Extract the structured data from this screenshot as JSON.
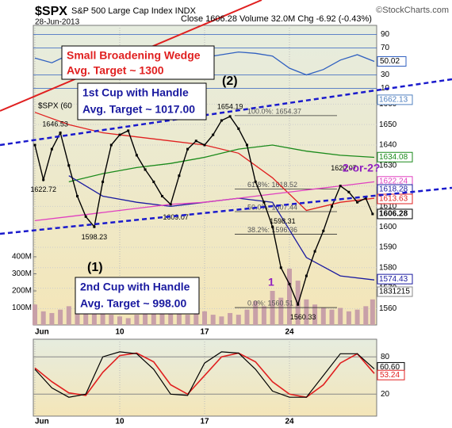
{
  "chart_data": {
    "type": "stock",
    "title": "$SPX",
    "subtitle": "S&P 500 Large Cap Index INDX",
    "source": "©StockCharts.com",
    "date": "28-Jun-2013",
    "quote": "Close 1606.28  Volume 32.0M Chg -6.92 (-0.43%)",
    "legend_label": "$SPX (60",
    "xlim": [
      0,
      20
    ],
    "xticks": [
      {
        "value": 0,
        "label": "Jun"
      },
      {
        "value": 5,
        "label": "10"
      },
      {
        "value": 10,
        "label": "17"
      },
      {
        "value": 15,
        "label": "24"
      }
    ],
    "ylim": [
      1552,
      1671
    ],
    "yticks": [
      1560,
      1570,
      1580,
      1590,
      1600,
      1610,
      1620,
      1630,
      1640,
      1650,
      1660
    ],
    "grid": true,
    "price": {
      "color": "#000000",
      "x": [
        0,
        0.5,
        1,
        1.5,
        2,
        2.5,
        3,
        3.5,
        4,
        4.5,
        5,
        5.5,
        6,
        6.5,
        7,
        7.5,
        8,
        8.5,
        9,
        9.5,
        10,
        10.5,
        11,
        11.5,
        12,
        12.5,
        13,
        13.5,
        14,
        14.5,
        15,
        15.5,
        16,
        16.5,
        17,
        17.5,
        18,
        18.5,
        19,
        19.5,
        19.9
      ],
      "values": [
        1640,
        1623,
        1638,
        1646,
        1630,
        1615,
        1605,
        1600,
        1622,
        1640,
        1645,
        1647,
        1635,
        1628,
        1622,
        1615,
        1611,
        1625,
        1638,
        1642,
        1640,
        1645,
        1652,
        1654,
        1648,
        1640,
        1622,
        1612,
        1600,
        1580,
        1572,
        1562,
        1576,
        1588,
        1598,
        1610,
        1620,
        1617,
        1612,
        1614,
        1606.28
      ]
    },
    "series": [
      {
        "color": "#e02020",
        "x": [
          0,
          2,
          4,
          6,
          8,
          10,
          12,
          14,
          16,
          18,
          20
        ],
        "values": [
          1656,
          1650,
          1646,
          1644,
          1642,
          1640,
          1636,
          1624,
          1608,
          1612,
          1614
        ]
      },
      {
        "color": "#1a8a1a",
        "x": [
          0,
          2,
          4,
          6,
          8,
          10,
          12,
          14,
          16,
          18,
          20
        ],
        "values": [
          null,
          1622,
          1626,
          1629,
          1631,
          1634,
          1638,
          1640,
          1637,
          1635,
          1634
        ]
      },
      {
        "color": "#1a1aa0",
        "x": [
          0,
          2,
          4,
          6,
          8,
          10,
          12,
          14,
          16,
          18,
          20
        ],
        "values": [
          null,
          1625,
          1615,
          1612,
          1610,
          1612,
          1614,
          1612,
          1585,
          1576,
          1574
        ]
      },
      {
        "color": "#e040c0",
        "x": [
          0,
          2,
          4,
          6,
          8,
          10,
          12,
          14,
          16,
          18,
          20
        ],
        "values": [
          1603,
          1605,
          1607,
          1609,
          1611,
          1612,
          1614,
          1616,
          1618,
          1620,
          1622
        ]
      }
    ],
    "volume": {
      "color": "#c8a0a8",
      "values": [
        120000000,
        80000000,
        70000000,
        90000000,
        110000000,
        90000000,
        70000000,
        130000000,
        80000000,
        60000000,
        50000000,
        40000000,
        60000000,
        70000000,
        90000000,
        80000000,
        100000000,
        70000000,
        60000000,
        70000000,
        80000000,
        60000000,
        50000000,
        70000000,
        60000000,
        90000000,
        140000000,
        110000000,
        200000000,
        160000000,
        330000000,
        260000000,
        150000000,
        120000000,
        100000000,
        90000000,
        100000000,
        80000000,
        90000000,
        110000000,
        150000000
      ]
    },
    "vlim": [
      0,
      500000000
    ],
    "vticks": [
      {
        "value": 100000000,
        "label": "100M"
      },
      {
        "value": 200000000,
        "label": "200M"
      },
      {
        "value": 300000000,
        "label": "300M"
      },
      {
        "value": 400000000,
        "label": "400M"
      }
    ],
    "volume_box": 1831215,
    "price_boxes": [
      {
        "value": 1662.13,
        "color": "#5080c0"
      },
      {
        "value": 1634.08,
        "color": "#1a8a1a"
      },
      {
        "value": 1622.24,
        "color": "#e040c0"
      },
      {
        "value": 1618.28,
        "color": "#1a1aa0"
      },
      {
        "value": 1613.63,
        "color": "#e02020"
      },
      {
        "value": 1606.28,
        "color": "#000000"
      },
      {
        "value": 1574.43,
        "color": "#1a1aa0"
      }
    ],
    "point_labels": [
      {
        "x": 1.2,
        "value": 1646.53
      },
      {
        "x": 0.5,
        "value": 1622.72
      },
      {
        "x": 3.5,
        "value": 1598.23
      },
      {
        "x": 8.3,
        "value": 1609.07
      },
      {
        "x": 11.5,
        "value": 1654.19
      },
      {
        "x": 18.2,
        "value": 1620.07
      },
      {
        "x": 14.6,
        "value": 1598.31
      },
      {
        "x": 15.8,
        "value": 1560.33
      }
    ],
    "fib_levels": [
      {
        "value": 1654.37,
        "label": "100.0%: 1654.37"
      },
      {
        "value": 1618.52,
        "label": "61.8%: 1618.52"
      },
      {
        "value": 1607.44,
        "label": "50.0%: 1607.44"
      },
      {
        "value": 1596.36,
        "label": "38.2%: 1596.36"
      },
      {
        "value": 1560.51,
        "label": "0.0%: 1560.51"
      }
    ],
    "annotations": {
      "wedge": [
        "Small  Broadening Wedge",
        "Avg. Target ~ 1300"
      ],
      "wave2": "(2)",
      "cup1": [
        "1st Cup with Handle",
        "Avg. Target ~ 1017.00"
      ],
      "wave1": "(1)",
      "cup2": [
        "2nd Cup with Handle",
        "Avg. Target ~ 998.00"
      ],
      "alt": "2-or-2?",
      "sub1": "1"
    },
    "rsi": {
      "color": "#3060c0",
      "ylim": [
        0,
        100
      ],
      "yticks": [
        10,
        30,
        70,
        90
      ],
      "x": [
        0,
        1,
        2,
        3,
        4,
        5,
        6,
        7,
        8,
        9,
        10,
        11,
        12,
        13,
        14,
        15,
        16,
        17,
        18,
        19,
        20
      ],
      "values": [
        55,
        48,
        60,
        62,
        45,
        40,
        58,
        63,
        55,
        50,
        56,
        60,
        64,
        62,
        58,
        40,
        30,
        38,
        52,
        60,
        50.02
      ]
    },
    "stoch": {
      "ylim": [
        0,
        100
      ],
      "yticks": [
        20,
        80
      ],
      "x": [
        0,
        1,
        2,
        3,
        4,
        5,
        6,
        7,
        8,
        9,
        10,
        11,
        12,
        13,
        14,
        15,
        16,
        17,
        18,
        19,
        20
      ],
      "k": {
        "color": "#000000",
        "values": [
          60,
          30,
          15,
          20,
          80,
          88,
          85,
          60,
          20,
          18,
          70,
          88,
          86,
          60,
          25,
          15,
          15,
          50,
          85,
          85,
          60.6
        ]
      },
      "d": {
        "color": "#e02020",
        "values": [
          62,
          40,
          22,
          18,
          55,
          82,
          86,
          72,
          35,
          20,
          50,
          80,
          86,
          72,
          40,
          20,
          15,
          35,
          70,
          85,
          53.24
        ]
      },
      "boxes": [
        {
          "value": 60.6,
          "label": "60.60",
          "color": "#000000"
        },
        {
          "value": 53.24,
          "label": "53.24",
          "color": "#e02020"
        }
      ]
    }
  }
}
